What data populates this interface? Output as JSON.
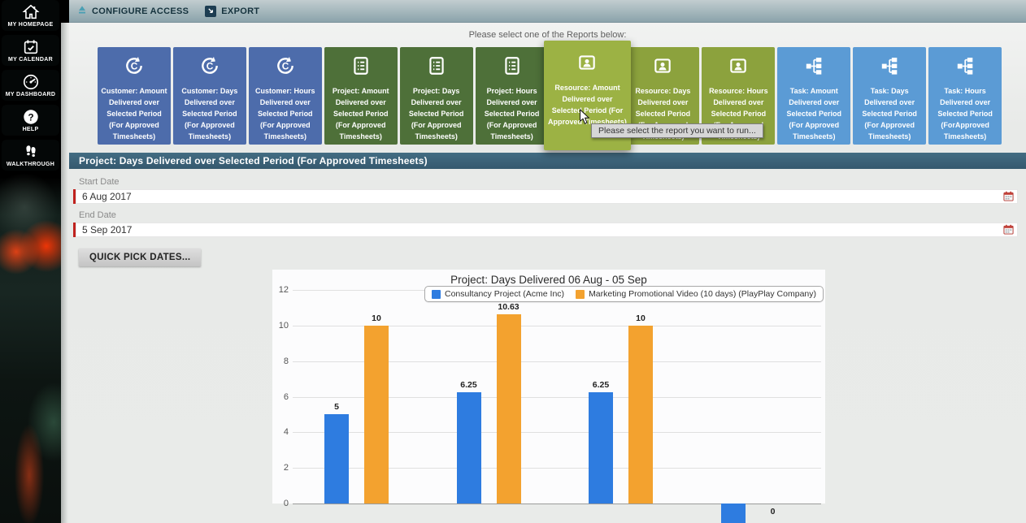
{
  "app": {
    "toolbar": {
      "configure_access_label": "CONFIGURE ACCESS",
      "export_label": "EXPORT"
    }
  },
  "sidebar": {
    "items": [
      {
        "label": "MY HOMEPAGE",
        "icon": "home-icon"
      },
      {
        "label": "MY CALENDAR",
        "icon": "calendar-icon"
      },
      {
        "label": "MY DASHBOARD",
        "icon": "dashboard-icon"
      },
      {
        "label": "HELP",
        "icon": "help-icon"
      },
      {
        "label": "WALKTHROUGH",
        "icon": "walkthrough-icon"
      }
    ]
  },
  "reports": {
    "prompt": "Please select one of the Reports below:",
    "tooltip": "Please select the report you want to run...",
    "tiles": [
      {
        "label": "Customer: Amount Delivered over Selected Period (For Approved Timesheets)",
        "group": "customer",
        "icon": "customer-refresh-icon",
        "hovered": false
      },
      {
        "label": "Customer: Days Delivered over Selected Period (For Approved Timesheets)",
        "group": "customer",
        "icon": "customer-refresh-icon",
        "hovered": false
      },
      {
        "label": "Customer: Hours Delivered over Selected Period (For Approved Timesheets)",
        "group": "customer",
        "icon": "customer-refresh-icon",
        "hovered": false
      },
      {
        "label": "Project: Amount Delivered over Selected Period (For Approved Timesheets)",
        "group": "project",
        "icon": "project-report-icon",
        "hovered": false
      },
      {
        "label": "Project: Days Delivered over Selected Period (For Approved Timesheets)",
        "group": "project",
        "icon": "project-report-icon",
        "hovered": false
      },
      {
        "label": "Project: Hours Delivered over Selected Period (For Approved Timesheets)",
        "group": "project",
        "icon": "project-report-icon",
        "hovered": false
      },
      {
        "label": "Resource: Amount Delivered over Selected Period (For Approved Timesheets)",
        "group": "resource",
        "icon": "resource-person-icon",
        "hovered": true
      },
      {
        "label": "Resource: Days Delivered over Selected Period (For Approved Timesheets)",
        "group": "resource",
        "icon": "resource-person-icon",
        "hovered": false
      },
      {
        "label": "Resource: Hours Delivered over Selected Period (For Approved Timesheets)",
        "group": "resource",
        "icon": "resource-person-icon",
        "hovered": false
      },
      {
        "label": "Task: Amount Delivered over Selected Period (For Approved Timesheets)",
        "group": "task",
        "icon": "task-hierarchy-icon",
        "hovered": false
      },
      {
        "label": "Task: Days Delivered over Selected Period (For Approved Timesheets)",
        "group": "task",
        "icon": "task-hierarchy-icon",
        "hovered": false
      },
      {
        "label": "Task: Hours Delivered over Selected Period (ForApproved Timesheets)",
        "group": "task",
        "icon": "task-hierarchy-icon",
        "hovered": false
      }
    ]
  },
  "selected_report": {
    "header": "Project: Days Delivered over Selected Period (For Approved Timesheets)"
  },
  "form": {
    "start_date": {
      "label": "Start Date",
      "value": "6 Aug 2017"
    },
    "end_date": {
      "label": "End Date",
      "value": "5 Sep 2017"
    },
    "quick_pick_label": "QUICK PICK DATES..."
  },
  "chart_data": {
    "type": "bar",
    "title": "Project: Days Delivered 06 Aug - 05 Sep",
    "categories": [
      "",
      "",
      "",
      ""
    ],
    "series": [
      {
        "name": "Consultancy Project (Acme Inc)",
        "color": "#2e7ce0",
        "values": [
          5,
          6.25,
          6.25,
          null
        ],
        "value_labels": [
          "5",
          "6.25",
          "6.25",
          ""
        ]
      },
      {
        "name": "Marketing Promotional Video (10 days) (PlayPlay Company)",
        "color": "#f3a22f",
        "values": [
          10,
          10.63,
          10,
          0
        ],
        "value_labels": [
          "10",
          "10.63",
          "10",
          "0"
        ]
      }
    ],
    "ylim": [
      0,
      12
    ],
    "yticks": [
      0,
      2,
      4,
      6,
      8,
      10,
      12
    ],
    "grid": true,
    "legend_position": "top-right",
    "clipped_bars": [
      {
        "series": 0,
        "index": 3,
        "direction": "below-axis"
      }
    ]
  },
  "colors": {
    "tile_customer": "#4d6cab",
    "tile_project": "#4e7039",
    "tile_resource": "#8ca23d",
    "tile_resource_hover": "#9cb244",
    "tile_task": "#5b9bd5",
    "header_bar": "#3d6171",
    "date_accent": "#c0231f",
    "bar_blue": "#2e7ce0",
    "bar_orange": "#f3a22f"
  }
}
